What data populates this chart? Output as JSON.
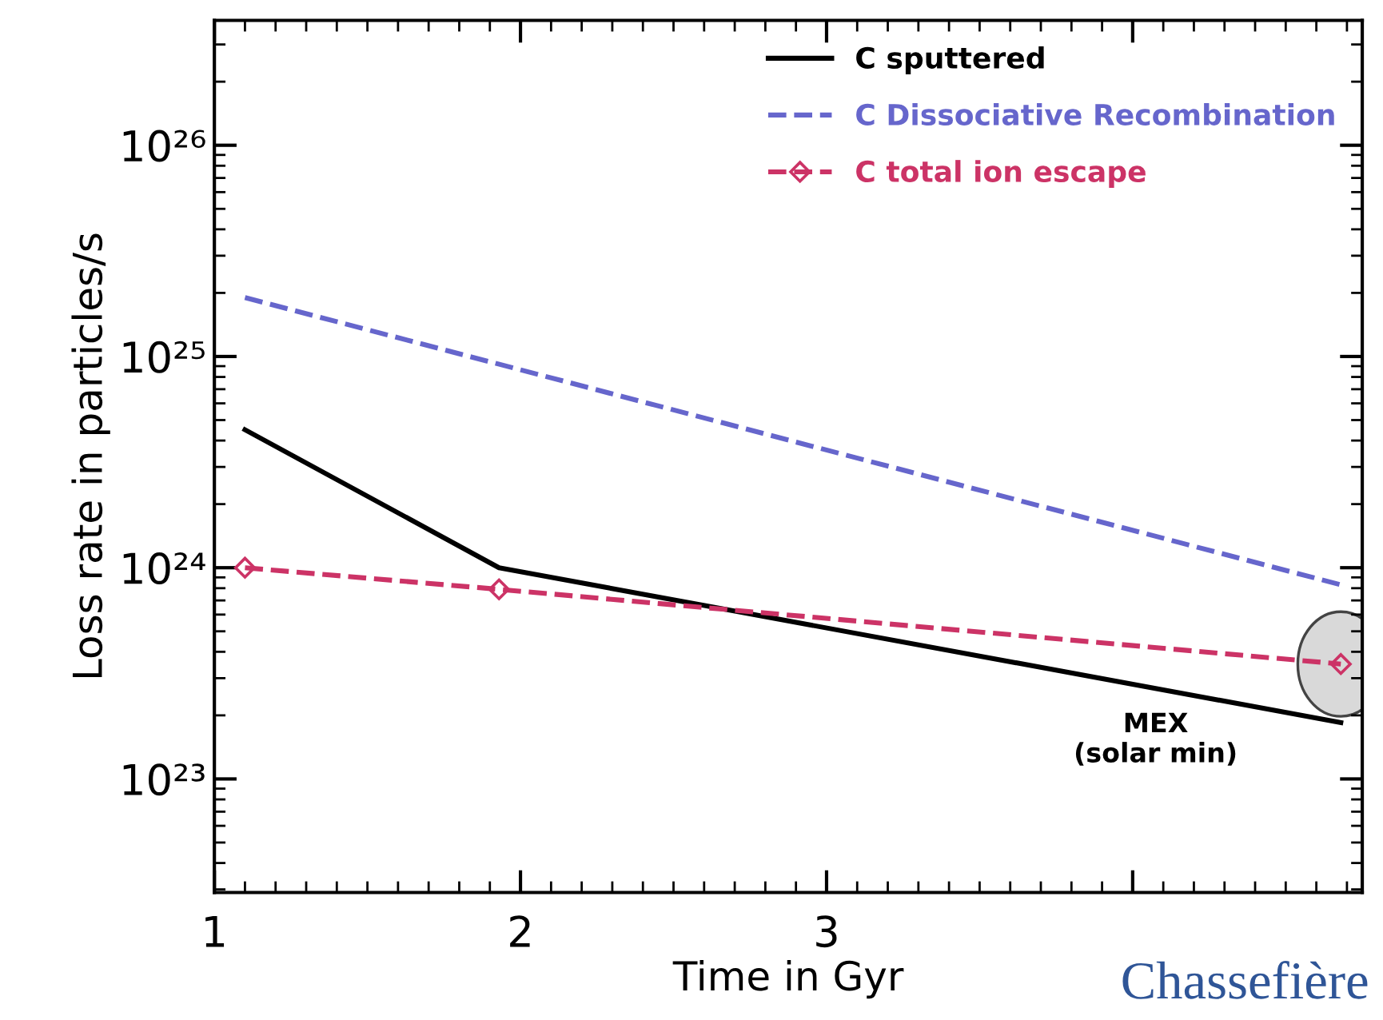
{
  "chart_data": {
    "type": "line",
    "xlabel": "Time in Gyr",
    "ylabel": "Loss rate in particles/s",
    "log": "y",
    "xlim": [
      1,
      4.75
    ],
    "xticks": [
      1,
      2,
      3,
      {
        "value": 4,
        "label": null
      }
    ],
    "ylim": [
      2.9e+22,
      3.9e+26
    ],
    "yticks": [
      {
        "value": 1e+23,
        "label": "10²³"
      },
      {
        "value": 1e+24,
        "label": "10²⁴"
      },
      {
        "value": 1e+25,
        "label": "10²⁵"
      },
      {
        "value": 1e+26,
        "label": "10²⁶"
      }
    ],
    "grid": false,
    "legend": "top right",
    "series": [
      {
        "name": "C sputtered",
        "color": "#000000",
        "line_style": "solid",
        "marker": "none",
        "x": [
          1.1,
          1.93,
          4.68
        ],
        "values": [
          4.5e+24,
          1e+24,
          1.85e+23
        ]
      },
      {
        "name": "C Dissociative Recombination",
        "color": "#6666cc",
        "line_style": "dashed",
        "marker": "none",
        "x": [
          1.1,
          4.68
        ],
        "values": [
          1.9e+25,
          8.3e+23
        ]
      },
      {
        "name": "C total ion escape",
        "color": "#cc3366",
        "line_style": "dashed",
        "marker": "diamond",
        "x": [
          1.1,
          1.93,
          4.68
        ],
        "values": [
          1e+24,
          7.9e+23,
          3.5e+23
        ]
      }
    ],
    "annotations": [
      "MEX\n(solar min)",
      "Chassefière"
    ]
  }
}
